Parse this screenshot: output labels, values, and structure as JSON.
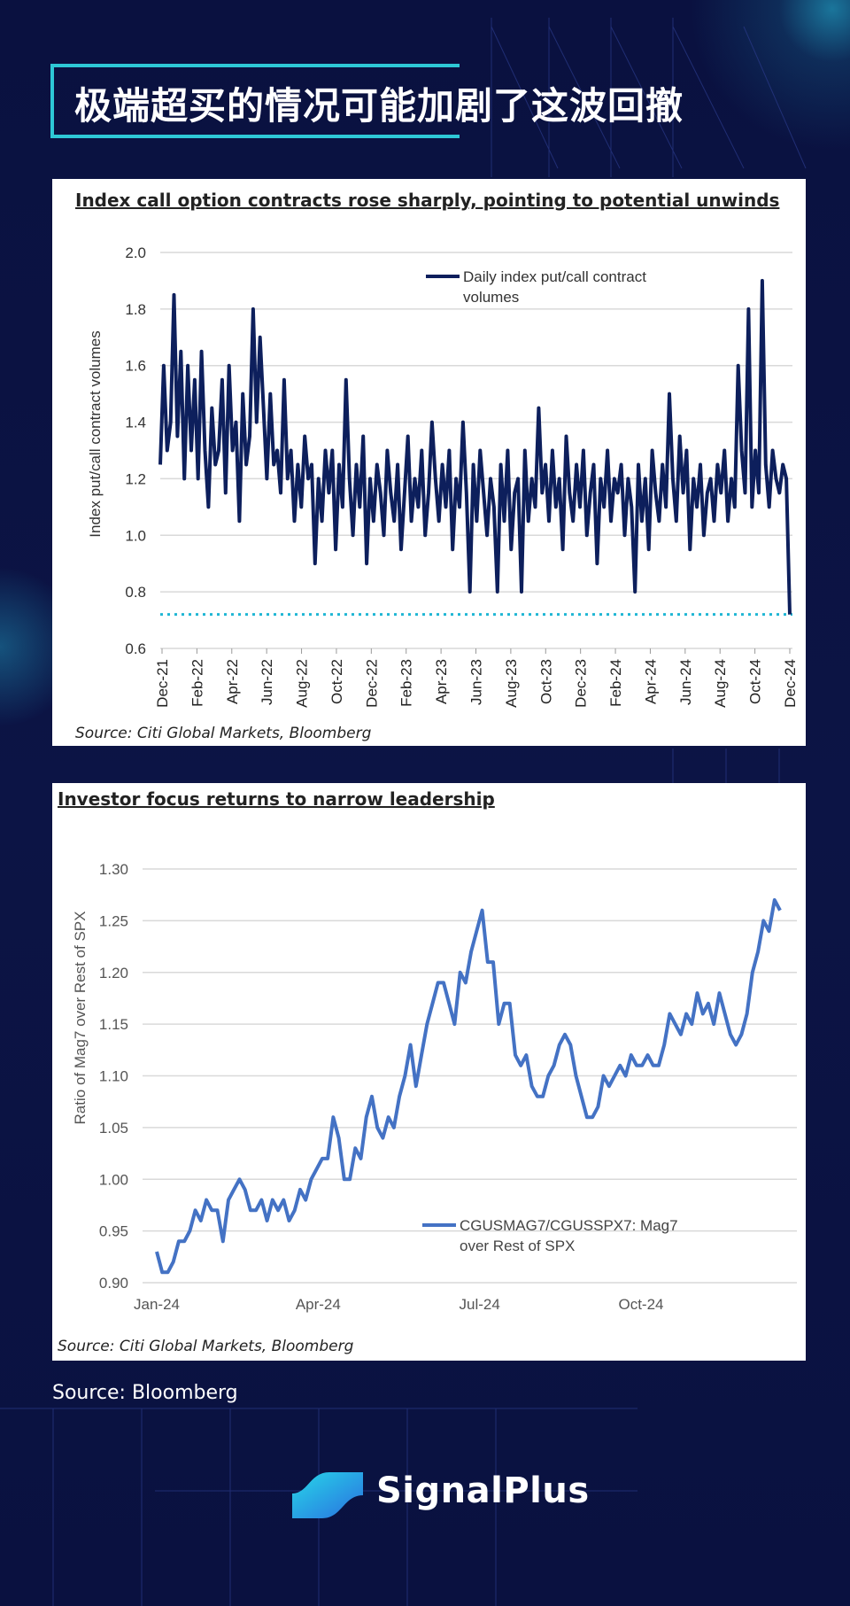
{
  "header": {
    "title": "极端超买的情况可能加剧了这波回撤"
  },
  "colors": {
    "accent": "#2ec8d6",
    "background": "#0b1240",
    "series1": "#0d1f5c",
    "series2": "#4472c4",
    "threshold": "#1fb6d4"
  },
  "chart_data": [
    {
      "type": "line",
      "title": "Index call option contracts rose sharply, pointing to potential unwinds",
      "ylabel": "Index put/call contract volumes",
      "xlabel": "",
      "ylim": [
        0.6,
        2.0
      ],
      "yticks": [
        "0.6",
        "0.8",
        "1.0",
        "1.2",
        "1.4",
        "1.6",
        "1.8",
        "2.0"
      ],
      "x_labels": [
        "Dec-21",
        "Feb-22",
        "Apr-22",
        "Jun-22",
        "Aug-22",
        "Oct-22",
        "Dec-22",
        "Feb-23",
        "Apr-23",
        "Jun-23",
        "Aug-23",
        "Oct-23",
        "Dec-23",
        "Feb-24",
        "Apr-24",
        "Jun-24",
        "Aug-24",
        "Oct-24",
        "Dec-24"
      ],
      "legend": "Daily index put/call contract volumes",
      "legend_position": "top-center",
      "threshold": 0.72,
      "series": [
        {
          "name": "Daily index put/call contract volumes",
          "values": [
            1.25,
            1.6,
            1.3,
            1.4,
            1.85,
            1.35,
            1.65,
            1.2,
            1.6,
            1.3,
            1.55,
            1.2,
            1.65,
            1.3,
            1.1,
            1.45,
            1.25,
            1.3,
            1.55,
            1.15,
            1.6,
            1.3,
            1.4,
            1.05,
            1.5,
            1.25,
            1.35,
            1.8,
            1.4,
            1.7,
            1.45,
            1.2,
            1.5,
            1.25,
            1.3,
            1.15,
            1.55,
            1.2,
            1.3,
            1.05,
            1.25,
            1.1,
            1.35,
            1.2,
            1.25,
            0.9,
            1.2,
            1.05,
            1.3,
            1.15,
            1.3,
            0.95,
            1.25,
            1.1,
            1.55,
            1.2,
            1.0,
            1.25,
            1.1,
            1.35,
            0.9,
            1.2,
            1.05,
            1.25,
            1.15,
            1.0,
            1.3,
            1.15,
            1.05,
            1.25,
            0.95,
            1.15,
            1.35,
            1.05,
            1.2,
            1.1,
            1.3,
            1.0,
            1.15,
            1.4,
            1.2,
            1.05,
            1.25,
            1.1,
            1.3,
            0.95,
            1.2,
            1.1,
            1.4,
            1.15,
            0.8,
            1.25,
            1.05,
            1.3,
            1.15,
            1.0,
            1.2,
            1.1,
            0.8,
            1.25,
            1.05,
            1.3,
            0.95,
            1.15,
            1.2,
            0.8,
            1.3,
            1.05,
            1.2,
            1.1,
            1.45,
            1.15,
            1.25,
            1.05,
            1.3,
            1.1,
            1.2,
            0.95,
            1.35,
            1.15,
            1.05,
            1.25,
            1.1,
            1.3,
            1.0,
            1.15,
            1.25,
            0.9,
            1.2,
            1.1,
            1.3,
            1.05,
            1.2,
            1.15,
            1.25,
            1.0,
            1.2,
            1.1,
            0.8,
            1.25,
            1.05,
            1.2,
            0.95,
            1.3,
            1.15,
            1.05,
            1.25,
            1.1,
            1.5,
            1.2,
            1.05,
            1.35,
            1.15,
            1.3,
            0.95,
            1.2,
            1.1,
            1.25,
            1.0,
            1.15,
            1.2,
            1.05,
            1.25,
            1.15,
            1.3,
            1.05,
            1.2,
            1.1,
            1.6,
            1.3,
            1.15,
            1.8,
            1.1,
            1.3,
            1.15,
            1.9,
            1.25,
            1.1,
            1.3,
            1.2,
            1.15,
            1.25,
            1.2,
            0.72
          ]
        }
      ]
    },
    {
      "type": "line",
      "title": "Investor focus returns to narrow leadership",
      "ylabel": "Ratio of Mag7 over Rest of SPX",
      "xlabel": "",
      "ylim": [
        0.9,
        1.3
      ],
      "yticks": [
        "0.90",
        "0.95",
        "1.00",
        "1.05",
        "1.10",
        "1.15",
        "1.20",
        "1.25",
        "1.30"
      ],
      "x_labels": [
        "Jan-24",
        "Apr-24",
        "Jul-24",
        "Oct-24"
      ],
      "legend": "CGUSMAG7/CGUSSPX7: Mag7 over Rest of SPX",
      "legend_position": "bottom-right",
      "series": [
        {
          "name": "CGUSMAG7/CGUSSPX7: Mag7 over Rest of SPX",
          "values": [
            0.93,
            0.91,
            0.91,
            0.92,
            0.94,
            0.94,
            0.95,
            0.97,
            0.96,
            0.98,
            0.97,
            0.97,
            0.94,
            0.98,
            0.99,
            1.0,
            0.99,
            0.97,
            0.97,
            0.98,
            0.96,
            0.98,
            0.97,
            0.98,
            0.96,
            0.97,
            0.99,
            0.98,
            1.0,
            1.01,
            1.02,
            1.02,
            1.06,
            1.04,
            1.0,
            1.0,
            1.03,
            1.02,
            1.06,
            1.08,
            1.05,
            1.04,
            1.06,
            1.05,
            1.08,
            1.1,
            1.13,
            1.09,
            1.12,
            1.15,
            1.17,
            1.19,
            1.19,
            1.17,
            1.15,
            1.2,
            1.19,
            1.22,
            1.24,
            1.26,
            1.21,
            1.21,
            1.15,
            1.17,
            1.17,
            1.12,
            1.11,
            1.12,
            1.09,
            1.08,
            1.08,
            1.1,
            1.11,
            1.13,
            1.14,
            1.13,
            1.1,
            1.08,
            1.06,
            1.06,
            1.07,
            1.1,
            1.09,
            1.1,
            1.11,
            1.1,
            1.12,
            1.11,
            1.11,
            1.12,
            1.11,
            1.11,
            1.13,
            1.16,
            1.15,
            1.14,
            1.16,
            1.15,
            1.18,
            1.16,
            1.17,
            1.15,
            1.18,
            1.16,
            1.14,
            1.13,
            1.14,
            1.16,
            1.2,
            1.22,
            1.25,
            1.24,
            1.27,
            1.26
          ]
        }
      ]
    }
  ],
  "chart1": {
    "title": "Index call option contracts rose sharply, pointing to potential unwinds",
    "source": "Source: Citi Global Markets, Bloomberg",
    "legend_line1": "Daily index put/call contract",
    "legend_line2": "volumes",
    "ylabel": "Index put/call contract volumes"
  },
  "chart2": {
    "title": "Investor focus returns to narrow leadership",
    "source": "Source: Citi Global Markets, Bloomberg",
    "legend_line1": "CGUSMAG7/CGUSSPX7: Mag7",
    "legend_line2": "over Rest of SPX",
    "ylabel": "Ratio of Mag7 over Rest of SPX"
  },
  "footer": {
    "source": "Source: Bloomberg",
    "brand": "SignalPlus"
  }
}
